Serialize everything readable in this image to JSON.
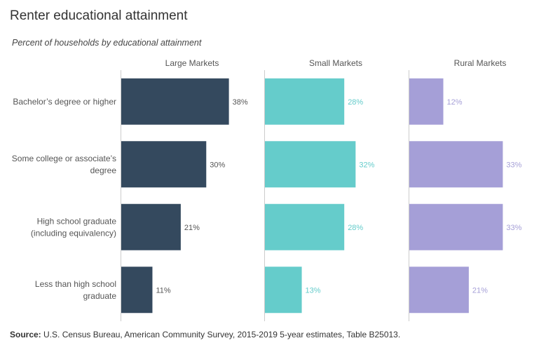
{
  "title": "Renter educational attainment",
  "subtitle": "Percent of households by educational attainment",
  "source": {
    "label": "Source:",
    "text": "U.S. Census Bureau, American Community Survey, 2015-2019 5-year estimates, Table B25013."
  },
  "colors": {
    "Large Markets": "#34495e",
    "Small Markets": "#65cccb",
    "Rural Markets": "#a59fd7"
  },
  "label_colors": {
    "Large Markets": "#555555",
    "Small Markets": "#65cccb",
    "Rural Markets": "#a59fd7"
  },
  "chart_data": {
    "type": "bar",
    "orientation": "horizontal",
    "title": "Renter educational attainment",
    "subtitle": "Percent of households by educational attainment",
    "categories": [
      [
        "Bachelor’s degree or higher"
      ],
      [
        "Some college or associate’s",
        "degree"
      ],
      [
        "High school graduate",
        "(including equivalency)"
      ],
      [
        "Less than high school",
        "graduate"
      ]
    ],
    "series": [
      {
        "name": "Large Markets",
        "values": [
          38,
          30,
          21,
          11
        ],
        "labels": [
          "38%",
          "30%",
          "21%",
          "11%"
        ]
      },
      {
        "name": "Small Markets",
        "values": [
          28,
          32,
          28,
          13
        ],
        "labels": [
          "28%",
          "32%",
          "28%",
          "13%"
        ]
      },
      {
        "name": "Rural Markets",
        "values": [
          12,
          33,
          33,
          21
        ],
        "labels": [
          "12%",
          "33%",
          "33%",
          "21%"
        ]
      }
    ],
    "xlim": [
      0,
      47
    ],
    "grid": false,
    "value_format": "percent"
  }
}
